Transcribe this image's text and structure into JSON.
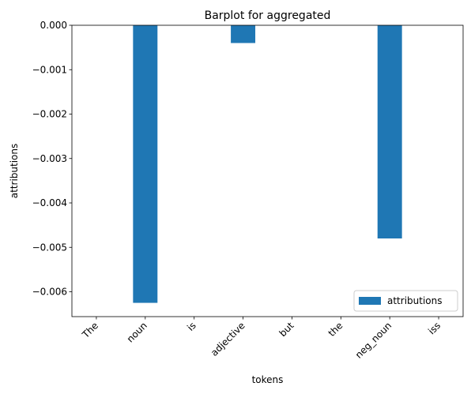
{
  "chart_data": {
    "type": "bar",
    "title": "Barplot for aggregated",
    "xlabel": "tokens",
    "ylabel": "attributions",
    "categories": [
      "The",
      "noun",
      "is",
      "adjective",
      "but",
      "the",
      "neg_noun",
      "iss"
    ],
    "series": [
      {
        "name": "attributions",
        "color": "#1f77b4",
        "values": [
          0.0,
          -0.00625,
          0.0,
          -0.0004,
          0.0,
          0.0,
          -0.0048,
          0.0
        ]
      }
    ],
    "ylim": [
      -0.00656,
      0.0
    ],
    "yticks": [
      0.0,
      -0.001,
      -0.002,
      -0.003,
      -0.004,
      -0.005,
      -0.006
    ],
    "ytick_labels": [
      "0.000",
      "−0.001",
      "−0.002",
      "−0.003",
      "−0.004",
      "−0.005",
      "−0.006"
    ],
    "legend": {
      "position": "lower-right",
      "entries": [
        "attributions"
      ]
    },
    "grid": false
  }
}
